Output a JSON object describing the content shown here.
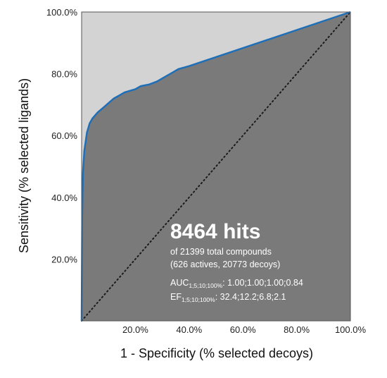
{
  "chart_data": {
    "type": "area",
    "xlabel": "1 - Specificity (% selected decoys)",
    "ylabel": "Sensitivity (% selected ligands)",
    "xlim": [
      0,
      100
    ],
    "ylim": [
      0,
      100
    ],
    "x_ticks": [
      "20.0%",
      "40.0%",
      "60.0%",
      "80.0%",
      "100.0%"
    ],
    "y_ticks": [
      "20.0%",
      "40.0%",
      "60.0%",
      "80.0%",
      "100.0%"
    ],
    "grid": false,
    "colors": {
      "plot_background": "#d3d3d3",
      "area_fill": "#7a7a7a",
      "curve": "#1e6fb8",
      "diagonal": "#1a1a1a"
    },
    "series": [
      {
        "x": [
          0,
          0.2,
          0.5,
          1,
          1.5,
          2,
          3,
          4,
          5,
          6,
          8,
          10,
          12,
          14,
          16,
          18,
          20,
          22,
          25,
          28,
          30,
          32,
          34,
          36,
          38,
          40,
          100
        ],
        "y": [
          0,
          34,
          48,
          55,
          58,
          61,
          64,
          65.5,
          66.5,
          67.5,
          69,
          70.5,
          72,
          73,
          74,
          74.5,
          75,
          76,
          76.5,
          77.5,
          78.5,
          79.5,
          80.5,
          81.5,
          82,
          82.5,
          100
        ]
      }
    ],
    "diagonal": {
      "x": [
        0,
        100
      ],
      "y": [
        0,
        100
      ],
      "style": "dotted"
    },
    "annotations": {
      "hits": "8464 hits",
      "total": "of 21399 total compounds",
      "breakdown": "(626 actives, 20773 decoys)",
      "auc_label": "AUC",
      "auc_sub": "1;5;10;100%",
      "auc_values": ": 1.00;1.00;1.00;0.84",
      "ef_label": "EF",
      "ef_sub": "1;5;10;100%",
      "ef_values": ": 32.4;12.2;6.8;2.1"
    }
  }
}
